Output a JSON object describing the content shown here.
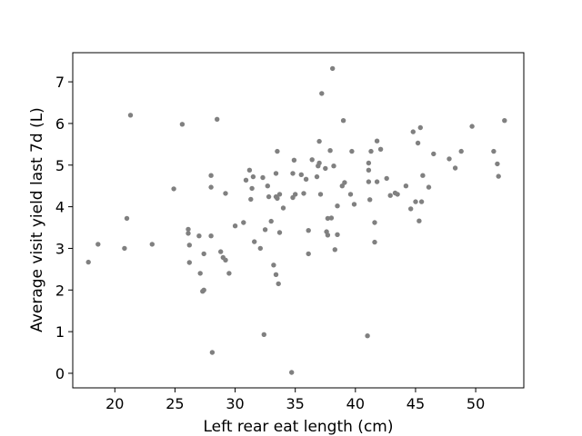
{
  "chart_data": {
    "type": "scatter",
    "title": "",
    "xlabel": "Left rear eat length (cm)",
    "ylabel": "Average visit yield last 7d (L)",
    "xlim": [
      16.5,
      54.0
    ],
    "ylim": [
      -0.35,
      7.7
    ],
    "xticks": [
      20,
      25,
      30,
      35,
      40,
      45,
      50
    ],
    "yticks": [
      0,
      1,
      2,
      3,
      4,
      5,
      6,
      7
    ],
    "grid": false,
    "marker_color": "#808080",
    "points": [
      [
        17.8,
        2.67
      ],
      [
        18.6,
        3.1
      ],
      [
        20.8,
        3.0
      ],
      [
        21.0,
        3.72
      ],
      [
        21.3,
        6.2
      ],
      [
        23.1,
        3.1
      ],
      [
        24.9,
        4.43
      ],
      [
        25.6,
        5.98
      ],
      [
        26.1,
        3.46
      ],
      [
        26.1,
        3.36
      ],
      [
        26.2,
        3.08
      ],
      [
        26.2,
        2.66
      ],
      [
        27.0,
        3.3
      ],
      [
        27.1,
        2.4
      ],
      [
        27.3,
        1.97
      ],
      [
        27.4,
        2.0
      ],
      [
        27.4,
        2.87
      ],
      [
        28.0,
        4.75
      ],
      [
        28.0,
        4.47
      ],
      [
        28.0,
        3.3
      ],
      [
        28.1,
        0.5
      ],
      [
        28.5,
        6.1
      ],
      [
        28.8,
        2.92
      ],
      [
        29.0,
        2.78
      ],
      [
        29.2,
        2.72
      ],
      [
        29.2,
        4.32
      ],
      [
        29.5,
        2.4
      ],
      [
        30.0,
        3.54
      ],
      [
        30.7,
        3.62
      ],
      [
        30.9,
        4.64
      ],
      [
        31.2,
        4.88
      ],
      [
        31.3,
        4.18
      ],
      [
        31.4,
        4.44
      ],
      [
        31.5,
        4.72
      ],
      [
        31.6,
        3.16
      ],
      [
        32.1,
        3.0
      ],
      [
        32.3,
        4.7
      ],
      [
        32.4,
        0.93
      ],
      [
        32.5,
        3.45
      ],
      [
        32.7,
        4.5
      ],
      [
        32.8,
        4.24
      ],
      [
        33.0,
        3.65
      ],
      [
        33.2,
        2.6
      ],
      [
        33.4,
        4.24
      ],
      [
        33.4,
        2.37
      ],
      [
        33.4,
        4.8
      ],
      [
        33.5,
        5.33
      ],
      [
        33.5,
        4.2
      ],
      [
        33.6,
        2.15
      ],
      [
        33.7,
        4.3
      ],
      [
        33.7,
        3.38
      ],
      [
        34.0,
        3.97
      ],
      [
        34.7,
        0.02
      ],
      [
        34.8,
        4.22
      ],
      [
        34.8,
        4.8
      ],
      [
        34.9,
        5.12
      ],
      [
        35.0,
        4.3
      ],
      [
        35.5,
        4.77
      ],
      [
        35.7,
        4.32
      ],
      [
        35.9,
        4.66
      ],
      [
        36.1,
        3.43
      ],
      [
        36.1,
        2.87
      ],
      [
        36.4,
        5.13
      ],
      [
        36.8,
        4.72
      ],
      [
        36.9,
        4.98
      ],
      [
        37.0,
        5.57
      ],
      [
        37.0,
        5.05
      ],
      [
        37.1,
        4.3
      ],
      [
        37.2,
        6.72
      ],
      [
        37.5,
        4.92
      ],
      [
        37.6,
        3.4
      ],
      [
        37.7,
        3.32
      ],
      [
        37.7,
        3.72
      ],
      [
        37.9,
        5.35
      ],
      [
        38.0,
        3.73
      ],
      [
        38.1,
        7.32
      ],
      [
        38.2,
        4.98
      ],
      [
        38.3,
        2.97
      ],
      [
        38.5,
        3.33
      ],
      [
        38.5,
        4.02
      ],
      [
        38.9,
        4.5
      ],
      [
        39.0,
        6.07
      ],
      [
        39.1,
        4.58
      ],
      [
        39.6,
        4.3
      ],
      [
        39.7,
        5.33
      ],
      [
        39.9,
        4.06
      ],
      [
        41.0,
        0.9
      ],
      [
        41.1,
        5.05
      ],
      [
        41.1,
        4.88
      ],
      [
        41.1,
        4.6
      ],
      [
        41.2,
        4.17
      ],
      [
        41.3,
        5.33
      ],
      [
        41.6,
        3.62
      ],
      [
        41.6,
        3.15
      ],
      [
        41.8,
        5.58
      ],
      [
        41.8,
        4.6
      ],
      [
        42.1,
        5.38
      ],
      [
        42.6,
        4.68
      ],
      [
        42.9,
        4.27
      ],
      [
        43.3,
        4.33
      ],
      [
        43.5,
        4.3
      ],
      [
        44.2,
        4.5
      ],
      [
        44.6,
        3.95
      ],
      [
        44.8,
        5.8
      ],
      [
        45.0,
        4.12
      ],
      [
        45.2,
        5.53
      ],
      [
        45.3,
        3.66
      ],
      [
        45.4,
        5.9
      ],
      [
        45.5,
        4.12
      ],
      [
        45.6,
        4.75
      ],
      [
        46.1,
        4.47
      ],
      [
        46.5,
        5.27
      ],
      [
        47.8,
        5.15
      ],
      [
        48.3,
        4.93
      ],
      [
        48.8,
        5.33
      ],
      [
        49.7,
        5.93
      ],
      [
        51.5,
        5.33
      ],
      [
        51.8,
        5.03
      ],
      [
        51.9,
        4.73
      ],
      [
        52.4,
        6.07
      ]
    ]
  }
}
